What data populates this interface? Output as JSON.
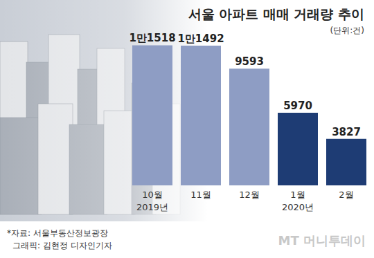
{
  "chart_data": {
    "type": "bar",
    "title": "서울 아파트 매매 거래량 추이",
    "subtitle": "(단위:건)",
    "categories": [
      "10월",
      "11월",
      "12월",
      "1월",
      "2월"
    ],
    "sub_categories": [
      "2019년",
      null,
      null,
      "2020년",
      null
    ],
    "values": [
      11518,
      11492,
      9593,
      5970,
      3827
    ],
    "value_labels": [
      "1만1518",
      "1만1492",
      "9593",
      "5970",
      "3827"
    ],
    "colors": [
      "#8e9dc4",
      "#8e9dc4",
      "#8e9dc4",
      "#1e3c74",
      "#1e3c74"
    ],
    "ylim": [
      0,
      12000
    ],
    "tick_labels": false,
    "data_labels": true,
    "source": "*자료: 서울부동산정보광장",
    "credit": "그래픽: 김현정 디자인기자",
    "watermark": "MT 머니투데이"
  }
}
